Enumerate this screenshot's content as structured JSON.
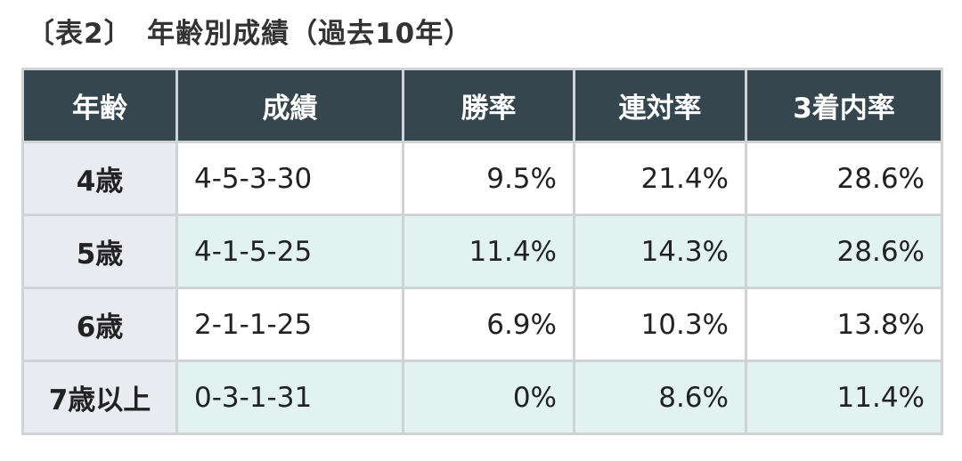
{
  "header": {
    "title": "〔表2〕　年齢別成績（過去10年）"
  },
  "table": {
    "columns": [
      "年齢",
      "成績",
      "勝率",
      "連対率",
      "3着内率"
    ],
    "rows": [
      [
        "4歳",
        "4-5-3-30",
        "9.5%",
        "21.4%",
        "28.6%"
      ],
      [
        "5歳",
        "4-1-5-25",
        "11.4%",
        "14.3%",
        "28.6%"
      ],
      [
        "6歳",
        "2-1-1-25",
        "6.9%",
        "10.3%",
        "13.8%"
      ],
      [
        "7歳以上",
        "0-3-1-31",
        "0%",
        "8.6%",
        "11.4%"
      ]
    ]
  }
}
